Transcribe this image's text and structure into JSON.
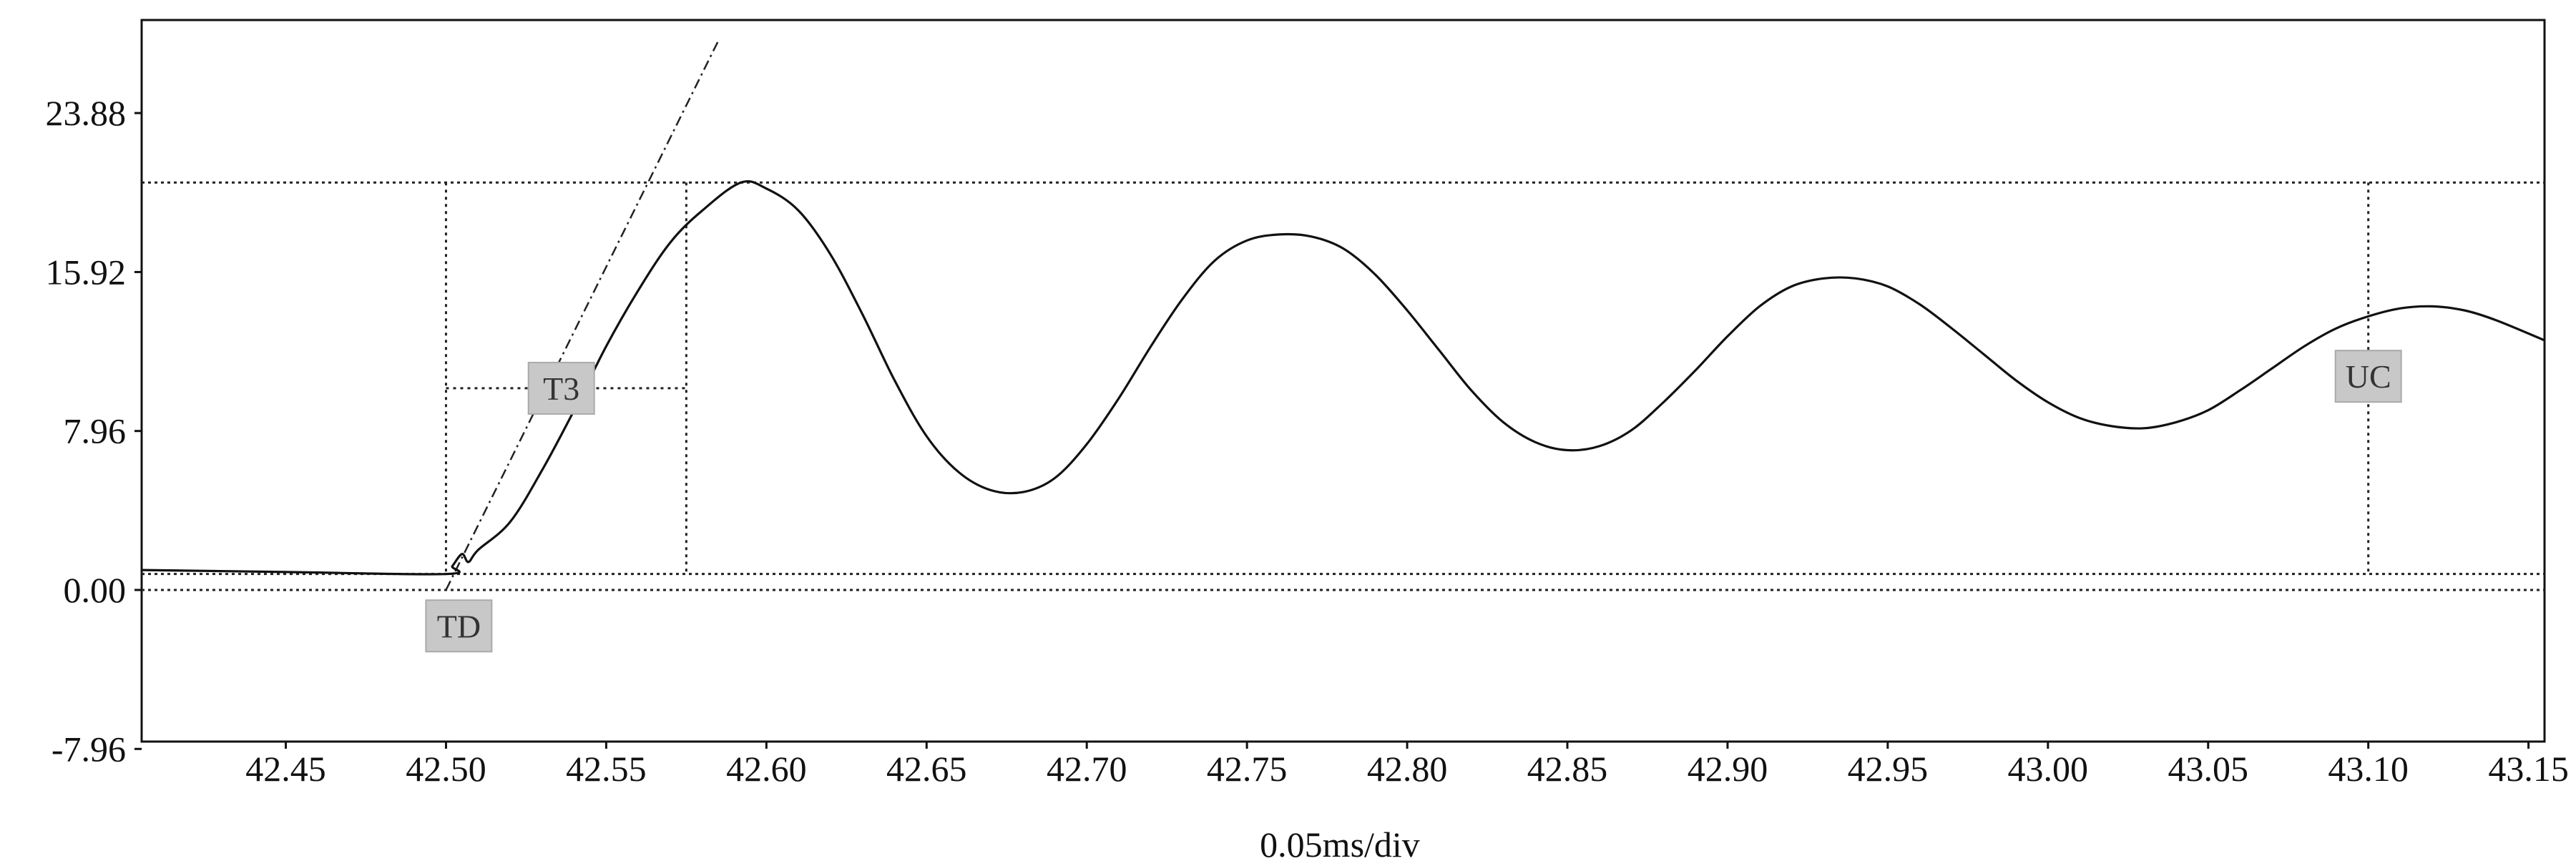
{
  "chart_data": {
    "type": "line",
    "title": "",
    "xlabel": "0.05ms/div",
    "ylabel": "",
    "xlim": [
      42.405,
      43.155
    ],
    "ylim": [
      -7.96,
      28.2
    ],
    "x_ticks": [
      "42.45",
      "42.50",
      "42.55",
      "42.60",
      "42.65",
      "42.70",
      "42.75",
      "42.80",
      "42.85",
      "42.90",
      "42.95",
      "43.00",
      "43.05",
      "43.10",
      "43.15"
    ],
    "y_ticks": [
      "23.88",
      "15.92",
      "7.96",
      "0.00",
      "-7.96"
    ],
    "grid": false,
    "legend": "none",
    "series": [
      {
        "points": [
          [
            42.405,
            1.0
          ],
          [
            42.45,
            0.9
          ],
          [
            42.5,
            0.8
          ],
          [
            42.502,
            1.2
          ],
          [
            42.505,
            1.8
          ],
          [
            42.507,
            1.4
          ],
          [
            42.51,
            2.0
          ],
          [
            42.52,
            3.4
          ],
          [
            42.53,
            6.0
          ],
          [
            42.54,
            9.0
          ],
          [
            42.55,
            12.2
          ],
          [
            42.56,
            15.0
          ],
          [
            42.57,
            17.4
          ],
          [
            42.58,
            19.0
          ],
          [
            42.592,
            20.4
          ],
          [
            42.6,
            20.1
          ],
          [
            42.61,
            19.0
          ],
          [
            42.62,
            16.8
          ],
          [
            42.63,
            13.8
          ],
          [
            42.64,
            10.5
          ],
          [
            42.65,
            7.7
          ],
          [
            42.66,
            5.9
          ],
          [
            42.67,
            5.0
          ],
          [
            42.68,
            4.9
          ],
          [
            42.69,
            5.6
          ],
          [
            42.7,
            7.3
          ],
          [
            42.71,
            9.6
          ],
          [
            42.72,
            12.2
          ],
          [
            42.73,
            14.6
          ],
          [
            42.74,
            16.5
          ],
          [
            42.75,
            17.5
          ],
          [
            42.76,
            17.8
          ],
          [
            42.77,
            17.7
          ],
          [
            42.78,
            17.1
          ],
          [
            42.79,
            15.8
          ],
          [
            42.8,
            14.0
          ],
          [
            42.81,
            12.0
          ],
          [
            42.82,
            10.0
          ],
          [
            42.83,
            8.4
          ],
          [
            42.84,
            7.4
          ],
          [
            42.85,
            7.0
          ],
          [
            42.86,
            7.2
          ],
          [
            42.87,
            8.0
          ],
          [
            42.88,
            9.4
          ],
          [
            42.89,
            11.0
          ],
          [
            42.9,
            12.7
          ],
          [
            42.91,
            14.2
          ],
          [
            42.92,
            15.2
          ],
          [
            42.93,
            15.6
          ],
          [
            42.94,
            15.6
          ],
          [
            42.95,
            15.2
          ],
          [
            42.96,
            14.3
          ],
          [
            42.97,
            13.1
          ],
          [
            42.98,
            11.8
          ],
          [
            42.99,
            10.5
          ],
          [
            43.0,
            9.4
          ],
          [
            43.01,
            8.6
          ],
          [
            43.02,
            8.2
          ],
          [
            43.03,
            8.1
          ],
          [
            43.04,
            8.4
          ],
          [
            43.05,
            9.0
          ],
          [
            43.06,
            10.0
          ],
          [
            43.07,
            11.1
          ],
          [
            43.08,
            12.2
          ],
          [
            43.09,
            13.1
          ],
          [
            43.1,
            13.7
          ],
          [
            43.11,
            14.1
          ],
          [
            43.12,
            14.2
          ],
          [
            43.13,
            14.0
          ],
          [
            43.14,
            13.5
          ],
          [
            43.155,
            12.5
          ]
        ]
      }
    ],
    "reference_lines": {
      "horizontal": [
        20.4,
        0.8,
        0.0
      ],
      "vertical": [
        42.5,
        42.575,
        43.1
      ]
    },
    "markers": [
      {
        "label": "T3",
        "x": 42.536,
        "y": 10.1
      },
      {
        "label": "TD",
        "x": 42.504,
        "y": -1.8
      },
      {
        "label": "UC",
        "x": 43.1,
        "y": 10.7
      }
    ],
    "tangent_line": {
      "x": [
        42.5,
        42.585
      ],
      "y": [
        0.0,
        27.5
      ]
    },
    "level_line": {
      "x": [
        42.5,
        42.575
      ],
      "y": 10.1
    }
  }
}
